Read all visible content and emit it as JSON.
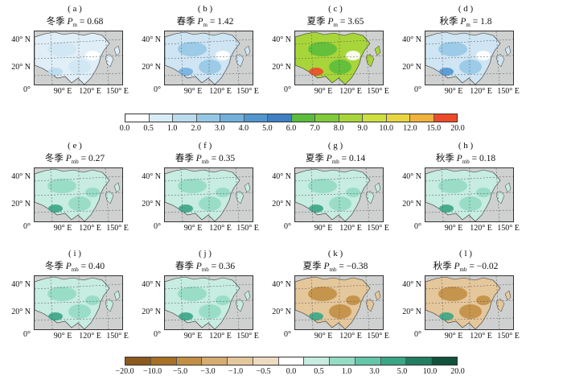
{
  "rows": [
    {
      "ylabels": [
        "40° N",
        "20° N",
        "0°"
      ],
      "xlabels": [
        "90° E",
        "120° E",
        "150° E"
      ],
      "panels": [
        {
          "label": "( a )",
          "season": "冬季",
          "symbol": "P",
          "sub": "m",
          "value": "= 0.68",
          "scheme": "mean"
        },
        {
          "label": "( b )",
          "season": "春季",
          "symbol": "P",
          "sub": "m",
          "value": "= 1.42",
          "scheme": "mean"
        },
        {
          "label": "( c )",
          "season": "夏季",
          "symbol": "P",
          "sub": "m",
          "value": "= 3.65",
          "scheme": "mean"
        },
        {
          "label": "( d )",
          "season": "秋季",
          "symbol": "P",
          "sub": "m",
          "value": "= 1.8",
          "scheme": "mean"
        }
      ]
    },
    {
      "ylabels": [
        "40° N",
        "20° N",
        "0°"
      ],
      "xlabels": [
        "90° E",
        "120° E",
        "150° E"
      ],
      "panels": [
        {
          "label": "( e )",
          "season": "冬季",
          "symbol": "P",
          "sub": "mb",
          "value": "= 0.27",
          "scheme": "bias"
        },
        {
          "label": "( f )",
          "season": "春季",
          "symbol": "P",
          "sub": "mb",
          "value": "= 0.35",
          "scheme": "bias"
        },
        {
          "label": "( g )",
          "season": "夏季",
          "symbol": "P",
          "sub": "mb",
          "value": "= 0.14",
          "scheme": "bias"
        },
        {
          "label": "( h )",
          "season": "秋季",
          "symbol": "P",
          "sub": "mb",
          "value": "= 0.18",
          "scheme": "bias"
        }
      ]
    },
    {
      "ylabels": [
        "40° N",
        "20° N",
        "0°"
      ],
      "xlabels": [
        "90° E",
        "120° E",
        "150° E"
      ],
      "panels": [
        {
          "label": "( i )",
          "season": "冬季",
          "symbol": "P",
          "sub": "mb",
          "value": "= 0.40",
          "scheme": "bias"
        },
        {
          "label": "( j )",
          "season": "春季",
          "symbol": "P",
          "sub": "mb",
          "value": "= 0.36",
          "scheme": "bias"
        },
        {
          "label": "( k )",
          "season": "夏季",
          "symbol": "P",
          "sub": "mb",
          "value": "= −0.38",
          "scheme": "bias"
        },
        {
          "label": "( l )",
          "season": "秋季",
          "symbol": "P",
          "sub": "mb",
          "value": "= −0.02",
          "scheme": "bias"
        }
      ]
    }
  ],
  "colorbar_top": {
    "labels": [
      "0.0",
      "0.5",
      "1.0",
      "2.0",
      "3.0",
      "4.0",
      "5.0",
      "6.0",
      "7.0",
      "8.0",
      "9.0",
      "10.0",
      "12.0",
      "15.0",
      "20.0"
    ],
    "colors": [
      "#ffffff",
      "#d8ecf6",
      "#b9dcee",
      "#95c8e6",
      "#73b0dc",
      "#5296cf",
      "#3f7fc4",
      "#5cbc3c",
      "#7fcb3a",
      "#a8d63a",
      "#cde03f",
      "#e8d640",
      "#f1b33c",
      "#ee4a2a"
    ]
  },
  "colorbar_bottom": {
    "labels": [
      "−20.0",
      "−10.0",
      "−5.0",
      "−3.0",
      "−1.0",
      "−0.5",
      "0.0",
      "0.5",
      "1.0",
      "3.0",
      "5.0",
      "10.0",
      "20.0"
    ],
    "colors": [
      "#8c5a1d",
      "#a87126",
      "#c28f45",
      "#d6ac70",
      "#e5c79c",
      "#efdcc0",
      "#ffffff",
      "#c7ece1",
      "#94dcc4",
      "#63c6a8",
      "#3aa686",
      "#237d60",
      "#12513c"
    ]
  }
}
